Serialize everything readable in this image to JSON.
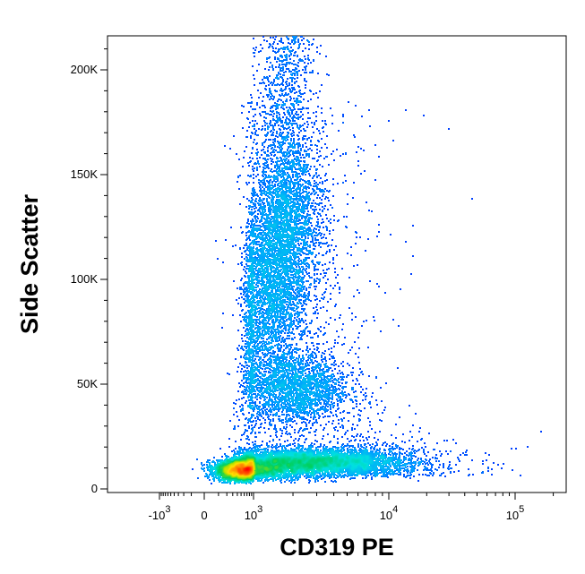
{
  "chart_data": {
    "type": "scatter",
    "subtype": "flow-cytometry density dot plot",
    "xlabel": "CD319 PE",
    "ylabel": "Side Scatter",
    "x_scale": "biexponential (logicle)",
    "y_scale": "linear",
    "ylim": [
      0,
      215000
    ],
    "x_ticks": [
      {
        "value": -1000,
        "base": "-10",
        "exp": "3"
      },
      {
        "value": 0,
        "base": "0",
        "exp": ""
      },
      {
        "value": 1000,
        "base": "10",
        "exp": "3"
      },
      {
        "value": 10000,
        "base": "10",
        "exp": "4"
      },
      {
        "value": 100000,
        "base": "10",
        "exp": "5"
      }
    ],
    "y_ticks": [
      {
        "value": 0,
        "label": "0"
      },
      {
        "value": 50000,
        "label": "50K"
      },
      {
        "value": 100000,
        "label": "100K"
      },
      {
        "value": 150000,
        "label": "150K"
      },
      {
        "value": 200000,
        "label": "200K"
      }
    ],
    "color_scale": [
      "#0000ff",
      "#00a0ff",
      "#00e0e0",
      "#00d060",
      "#a0e000",
      "#ffe000",
      "#ff8000",
      "#ff0000"
    ],
    "populations": [
      {
        "x_center": 550,
        "y_center": 9000,
        "x_spread": 0.18,
        "y_spread": 2500,
        "density": "very high"
      },
      {
        "x_center": 2500,
        "y_center": 13000,
        "x_spread": 0.2,
        "y_spread": 3000,
        "density": "high"
      },
      {
        "x_center": 1500,
        "y_center": 105000,
        "x_spread": 0.11,
        "y_spread": 28000,
        "density": "high"
      },
      {
        "x_center": 2100,
        "y_center": 48000,
        "x_spread": 0.12,
        "y_spread": 9000,
        "density": "medium"
      }
    ],
    "grid": false,
    "legend": "none"
  }
}
